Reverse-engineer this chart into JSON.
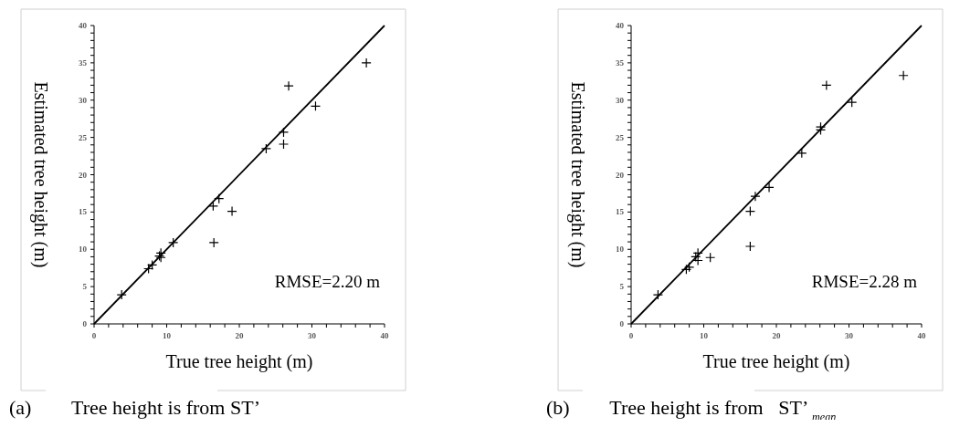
{
  "chart_data": [
    {
      "type": "scatter",
      "title": "(a)        Tree height is from ST’",
      "xlabel": "True tree height (m)",
      "ylabel": "Estimated tree height (m)",
      "xlim": [
        0,
        40
      ],
      "ylim": [
        0,
        40
      ],
      "xticks": [
        0,
        {
          "value": 2,
          "label": null
        },
        {
          "value": 4,
          "label": null
        },
        {
          "value": 6,
          "label": null
        },
        {
          "value": 8,
          "label": null
        },
        10,
        {
          "value": 12,
          "label": null
        },
        {
          "value": 14,
          "label": null
        },
        {
          "value": 16,
          "label": null
        },
        {
          "value": 18,
          "label": null
        },
        20,
        {
          "value": 22,
          "label": null
        },
        {
          "value": 24,
          "label": null
        },
        {
          "value": 26,
          "label": null
        },
        {
          "value": 28,
          "label": null
        },
        30,
        {
          "value": 32,
          "label": null
        },
        {
          "value": 34,
          "label": null
        },
        {
          "value": 36,
          "label": null
        },
        {
          "value": 38,
          "label": null
        },
        40
      ],
      "yticks": [
        0,
        {
          "value": 1,
          "label": null
        },
        {
          "value": 2,
          "label": null
        },
        {
          "value": 3,
          "label": null
        },
        {
          "value": 4,
          "label": null
        },
        5,
        {
          "value": 6,
          "label": null
        },
        {
          "value": 7,
          "label": null
        },
        {
          "value": 8,
          "label": null
        },
        {
          "value": 9,
          "label": null
        },
        10,
        {
          "value": 11,
          "label": null
        },
        {
          "value": 12,
          "label": null
        },
        {
          "value": 13,
          "label": null
        },
        {
          "value": 14,
          "label": null
        },
        15,
        {
          "value": 16,
          "label": null
        },
        {
          "value": 17,
          "label": null
        },
        {
          "value": 18,
          "label": null
        },
        {
          "value": 19,
          "label": null
        },
        20,
        {
          "value": 21,
          "label": null
        },
        {
          "value": 22,
          "label": null
        },
        {
          "value": 23,
          "label": null
        },
        {
          "value": 24,
          "label": null
        },
        25,
        {
          "value": 26,
          "label": null
        },
        {
          "value": 27,
          "label": null
        },
        {
          "value": 28,
          "label": null
        },
        {
          "value": 29,
          "label": null
        },
        30,
        {
          "value": 31,
          "label": null
        },
        {
          "value": 32,
          "label": null
        },
        {
          "value": 33,
          "label": null
        },
        {
          "value": 34,
          "label": null
        },
        35,
        {
          "value": 36,
          "label": null
        },
        {
          "value": 37,
          "label": null
        },
        {
          "value": 38,
          "label": null
        },
        {
          "value": 39,
          "label": null
        },
        40
      ],
      "grid": false,
      "annotations": [
        "RMSE=2.20 m"
      ],
      "series": [
        {
          "marker": "cross",
          "color": "#000000",
          "x": [
            3.8,
            7.5,
            8.0,
            9.0,
            9.2,
            9.2,
            10.9,
            16.5,
            16.4,
            17.2,
            19.0,
            23.7,
            26.1,
            26.1,
            26.8,
            30.5,
            37.5
          ],
          "values": [
            3.9,
            7.4,
            7.9,
            9.1,
            9.5,
            8.9,
            10.9,
            10.9,
            15.8,
            16.8,
            15.1,
            23.5,
            25.7,
            24.1,
            31.9,
            29.2,
            35.0
          ]
        },
        {
          "type": "line",
          "color": "#000000",
          "x": [
            0,
            40
          ],
          "values": [
            0,
            40
          ]
        }
      ]
    },
    {
      "type": "scatter",
      "title": "(b)        Tree height is from   ST’ $_{mean}$",
      "xlabel": "True tree height (m)",
      "ylabel": "Estimated tree height (m)",
      "xlim": [
        0,
        40
      ],
      "ylim": [
        0,
        40
      ],
      "xticks": [
        0,
        {
          "value": 2,
          "label": null
        },
        {
          "value": 4,
          "label": null
        },
        {
          "value": 6,
          "label": null
        },
        {
          "value": 8,
          "label": null
        },
        10,
        {
          "value": 12,
          "label": null
        },
        {
          "value": 14,
          "label": null
        },
        {
          "value": 16,
          "label": null
        },
        {
          "value": 18,
          "label": null
        },
        20,
        {
          "value": 22,
          "label": null
        },
        {
          "value": 24,
          "label": null
        },
        {
          "value": 26,
          "label": null
        },
        {
          "value": 28,
          "label": null
        },
        30,
        {
          "value": 32,
          "label": null
        },
        {
          "value": 34,
          "label": null
        },
        {
          "value": 36,
          "label": null
        },
        {
          "value": 38,
          "label": null
        },
        40
      ],
      "yticks": [
        0,
        {
          "value": 1,
          "label": null
        },
        {
          "value": 2,
          "label": null
        },
        {
          "value": 3,
          "label": null
        },
        {
          "value": 4,
          "label": null
        },
        5,
        {
          "value": 6,
          "label": null
        },
        {
          "value": 7,
          "label": null
        },
        {
          "value": 8,
          "label": null
        },
        {
          "value": 9,
          "label": null
        },
        10,
        {
          "value": 11,
          "label": null
        },
        {
          "value": 12,
          "label": null
        },
        {
          "value": 13,
          "label": null
        },
        {
          "value": 14,
          "label": null
        },
        15,
        {
          "value": 16,
          "label": null
        },
        {
          "value": 17,
          "label": null
        },
        {
          "value": 18,
          "label": null
        },
        {
          "value": 19,
          "label": null
        },
        20,
        {
          "value": 21,
          "label": null
        },
        {
          "value": 22,
          "label": null
        },
        {
          "value": 23,
          "label": null
        },
        {
          "value": 24,
          "label": null
        },
        25,
        {
          "value": 26,
          "label": null
        },
        {
          "value": 27,
          "label": null
        },
        {
          "value": 28,
          "label": null
        },
        {
          "value": 29,
          "label": null
        },
        30,
        {
          "value": 31,
          "label": null
        },
        {
          "value": 32,
          "label": null
        },
        {
          "value": 33,
          "label": null
        },
        {
          "value": 34,
          "label": null
        },
        35,
        {
          "value": 36,
          "label": null
        },
        {
          "value": 37,
          "label": null
        },
        {
          "value": 38,
          "label": null
        },
        {
          "value": 39,
          "label": null
        },
        40
      ],
      "grid": false,
      "annotations": [
        "RMSE=2.28 m"
      ],
      "series": [
        {
          "marker": "cross",
          "color": "#000000",
          "x": [
            3.7,
            7.6,
            8.0,
            8.9,
            9.2,
            9.2,
            10.9,
            16.4,
            16.4,
            17.1,
            19.0,
            23.5,
            26.1,
            26.1,
            26.9,
            30.4,
            37.5
          ],
          "values": [
            3.9,
            7.3,
            7.6,
            9.0,
            9.5,
            8.5,
            8.9,
            10.4,
            15.1,
            17.1,
            18.3,
            22.9,
            26.4,
            26.0,
            32.0,
            29.7,
            33.3
          ]
        },
        {
          "type": "line",
          "color": "#000000",
          "x": [
            0,
            40
          ],
          "values": [
            0,
            40
          ]
        }
      ]
    }
  ]
}
